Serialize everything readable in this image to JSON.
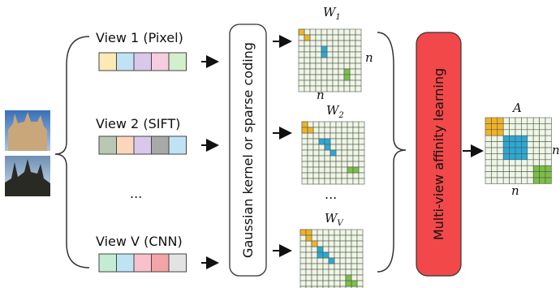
{
  "views": [
    {
      "label": "View 1 (Pixel)"
    },
    {
      "label": "View 2 (SIFT)"
    },
    {
      "label": "..."
    },
    {
      "label": "View V (CNN)"
    }
  ],
  "encoder": {
    "label": "Gaussian kernel or sparse coding"
  },
  "matrices": [
    {
      "symbol": "W",
      "subscript": "1",
      "size_label": "n"
    },
    {
      "symbol": "W",
      "subscript": "2"
    },
    {
      "symbol": "W",
      "subscript": "V"
    }
  ],
  "matrix_ellipsis": "...",
  "fusion": {
    "label": "Multi-view affinity learning"
  },
  "output": {
    "symbol": "A",
    "size_label": "n"
  }
}
